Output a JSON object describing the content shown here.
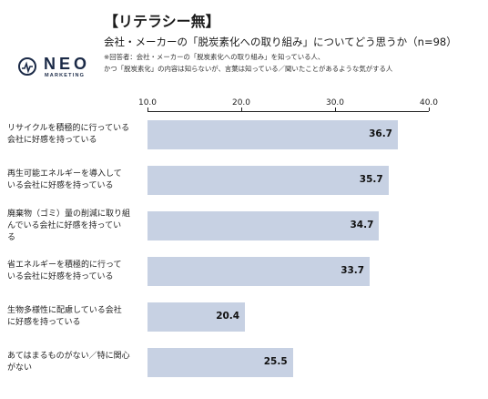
{
  "header": {
    "title": "【リテラシー無】",
    "subtitle": "会社・メーカーの「脱炭素化への取り組み」についてどう思うか（n=98）",
    "note_line1": "※回答者：会社・メーカーの「脱炭素化への取り組み」を知っている人、",
    "note_line2": "かつ「脱炭素化」の内容は知らないが、言葉は知っている／聞いたことがあるような気がする人"
  },
  "logo": {
    "word": "NEO",
    "sub": "MARKETING"
  },
  "chart_data": {
    "type": "bar",
    "orientation": "horizontal",
    "categories": [
      "リサイクルを積極的に行っている会社に好感を持っている",
      "再生可能エネルギーを導入している会社に好感を持っている",
      "廃棄物（ゴミ）量の削減に取り組んでいる会社に好感を持っている",
      "省エネルギーを積極的に行っている会社に好感を持っている",
      "生物多様性に配慮している会社に好感を持っている",
      "あてはまるものがない／特に関心がない"
    ],
    "category_lines": [
      [
        "リサイクルを積極的に行っている",
        "会社に好感を持っている"
      ],
      [
        "再生可能エネルギーを導入して",
        "いる会社に好感を持っている"
      ],
      [
        "廃棄物（ゴミ）量の削減に取り組",
        "んでいる会社に好感を持ってい",
        "る"
      ],
      [
        "省エネルギーを積極的に行って",
        "いる会社に好感を持っている"
      ],
      [
        "生物多様性に配慮している会社",
        "に好感を持っている"
      ],
      [
        "あてはまるものがない／特に関心",
        "がない"
      ]
    ],
    "values": [
      36.7,
      35.7,
      34.7,
      33.7,
      20.4,
      25.5
    ],
    "value_labels": [
      "36.7",
      "35.7",
      "34.7",
      "33.7",
      "20.4",
      "25.5"
    ],
    "xlim": [
      10.0,
      40.0
    ],
    "ticks": [
      "10.0",
      "20.0",
      "30.0",
      "40.0"
    ],
    "tick_values": [
      10,
      20,
      30,
      40
    ],
    "bar_color": "#c7d1e3",
    "grid": false
  }
}
